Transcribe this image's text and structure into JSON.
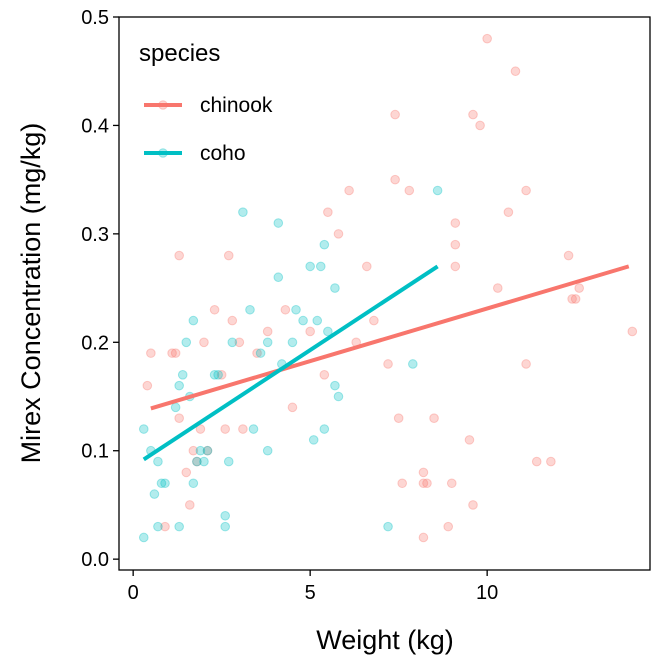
{
  "chart_data": {
    "type": "scatter",
    "title": "",
    "xlabel": "Weight (kg)",
    "ylabel": "Mirex Concentration (mg/kg)",
    "xlim": [
      -0.4,
      14.6
    ],
    "ylim": [
      -0.01,
      0.5
    ],
    "x_ticks": [
      0,
      5,
      10
    ],
    "x_tick_labels": [
      "0",
      "5",
      "10"
    ],
    "y_ticks": [
      0.0,
      0.1,
      0.2,
      0.3,
      0.4,
      0.5
    ],
    "y_tick_labels": [
      "0.0",
      "0.1",
      "0.2",
      "0.3",
      "0.4",
      "0.5"
    ],
    "grid": false,
    "legend": {
      "title": "species",
      "position": "top-left"
    },
    "series": [
      {
        "name": "chinook",
        "color": "#F8766D",
        "points": [
          [
            0.4,
            0.16
          ],
          [
            0.5,
            0.19
          ],
          [
            0.9,
            0.03
          ],
          [
            1.1,
            0.19
          ],
          [
            1.2,
            0.19
          ],
          [
            1.3,
            0.28
          ],
          [
            1.3,
            0.13
          ],
          [
            1.5,
            0.08
          ],
          [
            1.6,
            0.05
          ],
          [
            1.7,
            0.1
          ],
          [
            1.8,
            0.09
          ],
          [
            1.9,
            0.12
          ],
          [
            2.0,
            0.2
          ],
          [
            2.1,
            0.1
          ],
          [
            2.3,
            0.23
          ],
          [
            2.5,
            0.17
          ],
          [
            2.6,
            0.12
          ],
          [
            2.7,
            0.28
          ],
          [
            2.8,
            0.22
          ],
          [
            3.0,
            0.2
          ],
          [
            3.1,
            0.12
          ],
          [
            3.5,
            0.19
          ],
          [
            3.8,
            0.21
          ],
          [
            4.3,
            0.23
          ],
          [
            4.5,
            0.14
          ],
          [
            5.0,
            0.21
          ],
          [
            5.4,
            0.17
          ],
          [
            5.5,
            0.32
          ],
          [
            5.8,
            0.3
          ],
          [
            6.1,
            0.34
          ],
          [
            6.3,
            0.2
          ],
          [
            6.6,
            0.27
          ],
          [
            6.8,
            0.22
          ],
          [
            7.2,
            0.18
          ],
          [
            7.4,
            0.41
          ],
          [
            7.4,
            0.35
          ],
          [
            7.5,
            0.13
          ],
          [
            7.6,
            0.07
          ],
          [
            7.8,
            0.34
          ],
          [
            8.2,
            0.08
          ],
          [
            8.2,
            0.07
          ],
          [
            8.2,
            0.02
          ],
          [
            8.3,
            0.07
          ],
          [
            8.5,
            0.13
          ],
          [
            8.9,
            0.03
          ],
          [
            9.0,
            0.07
          ],
          [
            9.1,
            0.31
          ],
          [
            9.1,
            0.29
          ],
          [
            9.1,
            0.27
          ],
          [
            9.5,
            0.11
          ],
          [
            9.6,
            0.41
          ],
          [
            9.6,
            0.05
          ],
          [
            9.8,
            0.4
          ],
          [
            10.0,
            0.48
          ],
          [
            10.3,
            0.25
          ],
          [
            10.6,
            0.32
          ],
          [
            10.8,
            0.45
          ],
          [
            11.1,
            0.34
          ],
          [
            11.1,
            0.18
          ],
          [
            11.4,
            0.09
          ],
          [
            11.8,
            0.09
          ],
          [
            12.3,
            0.28
          ],
          [
            12.4,
            0.24
          ],
          [
            12.5,
            0.24
          ],
          [
            12.6,
            0.25
          ],
          [
            14.1,
            0.21
          ]
        ],
        "trend": [
          [
            0.5,
            0.139
          ],
          [
            14.0,
            0.27
          ]
        ]
      },
      {
        "name": "coho",
        "color": "#00BFC4",
        "points": [
          [
            0.3,
            0.12
          ],
          [
            0.3,
            0.02
          ],
          [
            0.5,
            0.1
          ],
          [
            0.6,
            0.06
          ],
          [
            0.7,
            0.09
          ],
          [
            0.7,
            0.03
          ],
          [
            0.8,
            0.07
          ],
          [
            0.9,
            0.07
          ],
          [
            1.2,
            0.14
          ],
          [
            1.3,
            0.16
          ],
          [
            1.3,
            0.03
          ],
          [
            1.4,
            0.17
          ],
          [
            1.5,
            0.2
          ],
          [
            1.6,
            0.15
          ],
          [
            1.7,
            0.07
          ],
          [
            1.7,
            0.22
          ],
          [
            1.8,
            0.09
          ],
          [
            1.9,
            0.1
          ],
          [
            2.0,
            0.09
          ],
          [
            2.1,
            0.1
          ],
          [
            2.3,
            0.17
          ],
          [
            2.4,
            0.17
          ],
          [
            2.6,
            0.03
          ],
          [
            2.6,
            0.04
          ],
          [
            2.7,
            0.09
          ],
          [
            2.8,
            0.2
          ],
          [
            3.1,
            0.32
          ],
          [
            3.3,
            0.23
          ],
          [
            3.4,
            0.12
          ],
          [
            3.6,
            0.19
          ],
          [
            3.8,
            0.2
          ],
          [
            3.8,
            0.1
          ],
          [
            4.1,
            0.31
          ],
          [
            4.1,
            0.26
          ],
          [
            4.2,
            0.18
          ],
          [
            4.5,
            0.2
          ],
          [
            4.6,
            0.23
          ],
          [
            4.8,
            0.22
          ],
          [
            5.0,
            0.27
          ],
          [
            5.1,
            0.11
          ],
          [
            5.2,
            0.22
          ],
          [
            5.3,
            0.27
          ],
          [
            5.4,
            0.29
          ],
          [
            5.4,
            0.12
          ],
          [
            5.5,
            0.21
          ],
          [
            5.7,
            0.25
          ],
          [
            5.7,
            0.16
          ],
          [
            5.8,
            0.15
          ],
          [
            7.2,
            0.03
          ],
          [
            7.9,
            0.18
          ],
          [
            8.6,
            0.34
          ]
        ],
        "trend": [
          [
            0.3,
            0.092
          ],
          [
            8.6,
            0.27
          ]
        ]
      }
    ]
  }
}
